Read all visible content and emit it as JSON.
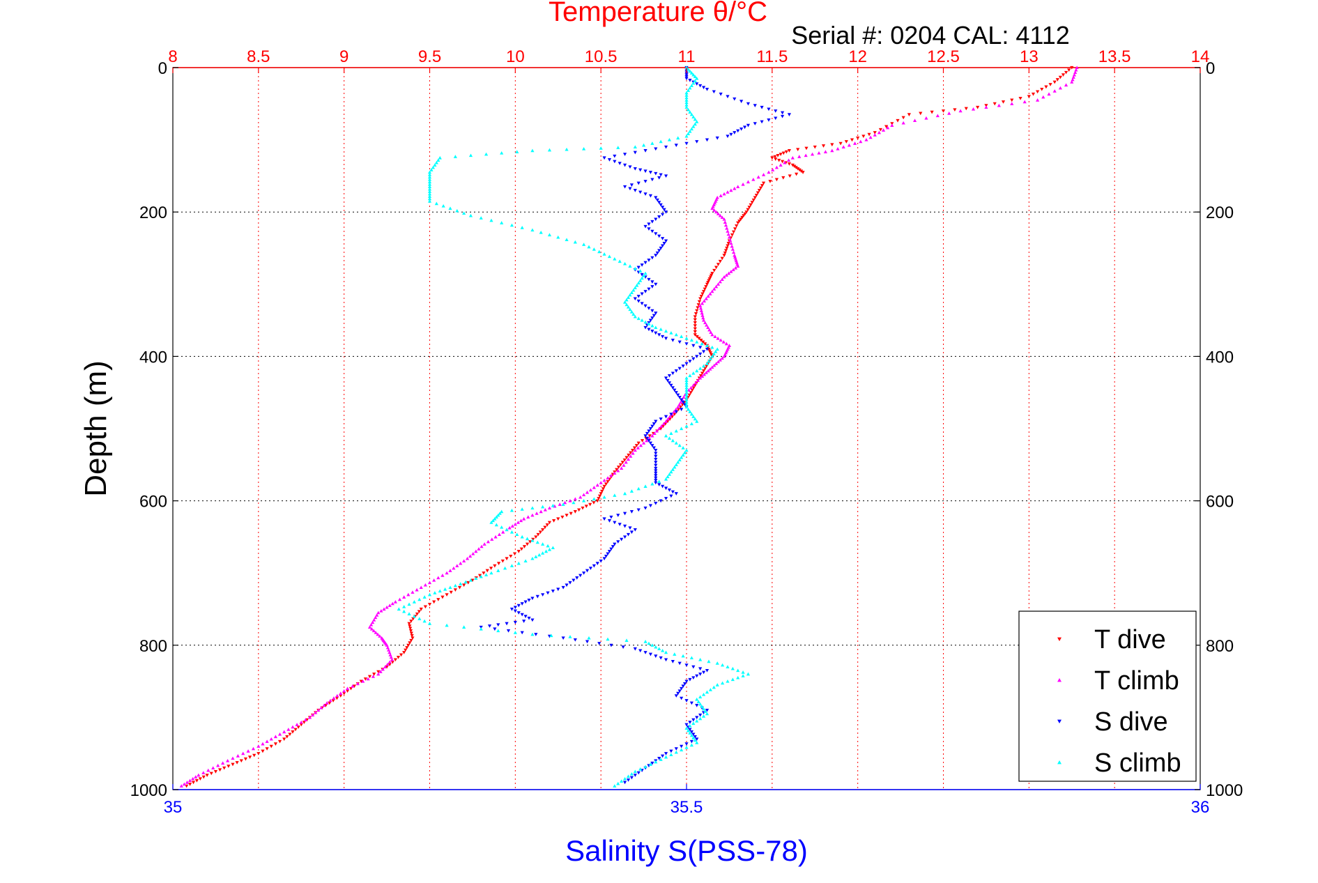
{
  "chart_data": {
    "type": "scatter",
    "title": "Temperature θ/°C",
    "subtitle": "Serial #: 0204  CAL: 4112",
    "ylabel": "Depth (m)",
    "xlabel": "Salinity S(PSS-78)",
    "ylim": [
      0,
      1000
    ],
    "y_reversed": true,
    "top_axis": {
      "quantity": "temperature",
      "range": [
        8,
        14
      ],
      "tick_labels": [
        "8",
        "8.5",
        "9",
        "9.5",
        "10",
        "10.5",
        "11",
        "11.5",
        "12",
        "12.5",
        "13",
        "13.5",
        "14"
      ],
      "color": "#ff0000",
      "grid": "dotted-red"
    },
    "bottom_axis": {
      "quantity": "salinity",
      "range": [
        35,
        36
      ],
      "tick_labels": [
        "35",
        "35.5",
        "36"
      ],
      "color": "#0000ff"
    },
    "y_tick_labels": [
      "0",
      "200",
      "400",
      "600",
      "800",
      "1000"
    ],
    "legend_position": "bottom-right",
    "series": [
      {
        "name": "T dive",
        "axis": "top",
        "color": "#ff0000",
        "marker": "triangle-down",
        "points": [
          [
            13.25,
            0
          ],
          [
            13.15,
            20
          ],
          [
            13.0,
            40
          ],
          [
            12.7,
            55
          ],
          [
            12.3,
            65
          ],
          [
            12.1,
            90
          ],
          [
            11.9,
            105
          ],
          [
            11.6,
            115
          ],
          [
            11.5,
            125
          ],
          [
            11.62,
            135
          ],
          [
            11.68,
            145
          ],
          [
            11.45,
            160
          ],
          [
            11.4,
            180
          ],
          [
            11.35,
            200
          ],
          [
            11.3,
            215
          ],
          [
            11.25,
            240
          ],
          [
            11.22,
            260
          ],
          [
            11.15,
            285
          ],
          [
            11.12,
            300
          ],
          [
            11.08,
            320
          ],
          [
            11.05,
            345
          ],
          [
            11.05,
            370
          ],
          [
            11.12,
            385
          ],
          [
            11.15,
            400
          ],
          [
            11.1,
            420
          ],
          [
            11.05,
            440
          ],
          [
            11.0,
            460
          ],
          [
            10.93,
            480
          ],
          [
            10.85,
            500
          ],
          [
            10.72,
            520
          ],
          [
            10.65,
            540
          ],
          [
            10.58,
            560
          ],
          [
            10.52,
            580
          ],
          [
            10.48,
            600
          ],
          [
            10.35,
            615
          ],
          [
            10.2,
            630
          ],
          [
            10.12,
            650
          ],
          [
            10.02,
            670
          ],
          [
            9.88,
            690
          ],
          [
            9.75,
            710
          ],
          [
            9.6,
            730
          ],
          [
            9.45,
            750
          ],
          [
            9.38,
            770
          ],
          [
            9.4,
            790
          ],
          [
            9.35,
            810
          ],
          [
            9.25,
            830
          ],
          [
            9.1,
            850
          ],
          [
            8.98,
            870
          ],
          [
            8.85,
            890
          ],
          [
            8.75,
            910
          ],
          [
            8.65,
            930
          ],
          [
            8.5,
            950
          ],
          [
            8.35,
            965
          ],
          [
            8.2,
            980
          ],
          [
            8.08,
            995
          ]
        ]
      },
      {
        "name": "T climb",
        "axis": "top",
        "color": "#ff00ff",
        "marker": "triangle-up",
        "points": [
          [
            13.28,
            0
          ],
          [
            13.25,
            20
          ],
          [
            13.05,
            45
          ],
          [
            12.6,
            60
          ],
          [
            12.2,
            80
          ],
          [
            12.05,
            100
          ],
          [
            11.85,
            115
          ],
          [
            11.62,
            125
          ],
          [
            11.48,
            145
          ],
          [
            11.3,
            165
          ],
          [
            11.18,
            180
          ],
          [
            11.15,
            195
          ],
          [
            11.22,
            210
          ],
          [
            11.25,
            235
          ],
          [
            11.28,
            260
          ],
          [
            11.3,
            275
          ],
          [
            11.22,
            290
          ],
          [
            11.15,
            310
          ],
          [
            11.08,
            330
          ],
          [
            11.1,
            350
          ],
          [
            11.15,
            370
          ],
          [
            11.25,
            385
          ],
          [
            11.22,
            400
          ],
          [
            11.15,
            415
          ],
          [
            11.08,
            430
          ],
          [
            11.0,
            450
          ],
          [
            10.95,
            470
          ],
          [
            10.88,
            490
          ],
          [
            10.8,
            510
          ],
          [
            10.7,
            530
          ],
          [
            10.62,
            555
          ],
          [
            10.5,
            575
          ],
          [
            10.38,
            595
          ],
          [
            10.2,
            610
          ],
          [
            10.05,
            625
          ],
          [
            9.95,
            640
          ],
          [
            9.82,
            660
          ],
          [
            9.72,
            680
          ],
          [
            9.6,
            700
          ],
          [
            9.45,
            720
          ],
          [
            9.3,
            740
          ],
          [
            9.2,
            755
          ],
          [
            9.15,
            775
          ],
          [
            9.22,
            790
          ],
          [
            9.25,
            800
          ],
          [
            9.28,
            820
          ],
          [
            9.2,
            840
          ],
          [
            9.02,
            860
          ],
          [
            8.9,
            880
          ],
          [
            8.8,
            900
          ],
          [
            8.65,
            920
          ],
          [
            8.5,
            940
          ],
          [
            8.32,
            960
          ],
          [
            8.15,
            980
          ],
          [
            8.05,
            995
          ]
        ]
      },
      {
        "name": "S dive",
        "axis": "bottom",
        "color": "#0000ff",
        "marker": "triangle-down",
        "points": [
          [
            35.5,
            0
          ],
          [
            35.5,
            15
          ],
          [
            35.52,
            30
          ],
          [
            35.56,
            50
          ],
          [
            35.6,
            65
          ],
          [
            35.56,
            80
          ],
          [
            35.54,
            95
          ],
          [
            35.48,
            110
          ],
          [
            35.42,
            125
          ],
          [
            35.45,
            140
          ],
          [
            35.48,
            150
          ],
          [
            35.44,
            165
          ],
          [
            35.47,
            180
          ],
          [
            35.48,
            200
          ],
          [
            35.46,
            220
          ],
          [
            35.48,
            240
          ],
          [
            35.47,
            260
          ],
          [
            35.45,
            280
          ],
          [
            35.47,
            300
          ],
          [
            35.45,
            320
          ],
          [
            35.47,
            340
          ],
          [
            35.46,
            360
          ],
          [
            35.48,
            375
          ],
          [
            35.52,
            390
          ],
          [
            35.5,
            410
          ],
          [
            35.48,
            430
          ],
          [
            35.49,
            450
          ],
          [
            35.5,
            470
          ],
          [
            35.47,
            490
          ],
          [
            35.46,
            510
          ],
          [
            35.47,
            530
          ],
          [
            35.47,
            555
          ],
          [
            35.47,
            575
          ],
          [
            35.49,
            590
          ],
          [
            35.46,
            610
          ],
          [
            35.42,
            625
          ],
          [
            35.45,
            640
          ],
          [
            35.43,
            660
          ],
          [
            35.42,
            680
          ],
          [
            35.4,
            700
          ],
          [
            35.38,
            720
          ],
          [
            35.35,
            735
          ],
          [
            35.33,
            750
          ],
          [
            35.35,
            765
          ],
          [
            35.3,
            775
          ],
          [
            35.38,
            790
          ],
          [
            35.45,
            805
          ],
          [
            35.48,
            820
          ],
          [
            35.52,
            835
          ],
          [
            35.5,
            850
          ],
          [
            35.49,
            870
          ],
          [
            35.52,
            890
          ],
          [
            35.5,
            910
          ],
          [
            35.51,
            930
          ],
          [
            35.48,
            950
          ],
          [
            35.46,
            970
          ],
          [
            35.44,
            990
          ]
        ]
      },
      {
        "name": "S climb",
        "axis": "bottom",
        "color": "#00ffff",
        "marker": "triangle-up",
        "points": [
          [
            35.5,
            0
          ],
          [
            35.51,
            15
          ],
          [
            35.5,
            35
          ],
          [
            35.5,
            55
          ],
          [
            35.51,
            75
          ],
          [
            35.5,
            95
          ],
          [
            35.45,
            110
          ],
          [
            35.35,
            115
          ],
          [
            35.26,
            125
          ],
          [
            35.25,
            145
          ],
          [
            35.25,
            165
          ],
          [
            35.25,
            185
          ],
          [
            35.29,
            205
          ],
          [
            35.35,
            225
          ],
          [
            35.4,
            245
          ],
          [
            35.43,
            265
          ],
          [
            35.46,
            285
          ],
          [
            35.45,
            305
          ],
          [
            35.44,
            325
          ],
          [
            35.45,
            345
          ],
          [
            35.47,
            360
          ],
          [
            35.5,
            375
          ],
          [
            35.53,
            390
          ],
          [
            35.52,
            410
          ],
          [
            35.5,
            430
          ],
          [
            35.5,
            450
          ],
          [
            35.5,
            470
          ],
          [
            35.51,
            490
          ],
          [
            35.48,
            510
          ],
          [
            35.5,
            530
          ],
          [
            35.49,
            550
          ],
          [
            35.48,
            570
          ],
          [
            35.44,
            590
          ],
          [
            35.38,
            605
          ],
          [
            35.32,
            615
          ],
          [
            35.31,
            630
          ],
          [
            35.34,
            650
          ],
          [
            35.37,
            665
          ],
          [
            35.35,
            680
          ],
          [
            35.31,
            700
          ],
          [
            35.28,
            715
          ],
          [
            35.25,
            730
          ],
          [
            35.22,
            750
          ],
          [
            35.25,
            770
          ],
          [
            35.35,
            785
          ],
          [
            35.46,
            795
          ],
          [
            35.48,
            810
          ],
          [
            35.53,
            825
          ],
          [
            35.56,
            840
          ],
          [
            35.53,
            855
          ],
          [
            35.51,
            875
          ],
          [
            35.52,
            895
          ],
          [
            35.5,
            915
          ],
          [
            35.51,
            935
          ],
          [
            35.48,
            955
          ],
          [
            35.45,
            975
          ],
          [
            35.43,
            995
          ]
        ]
      }
    ]
  }
}
